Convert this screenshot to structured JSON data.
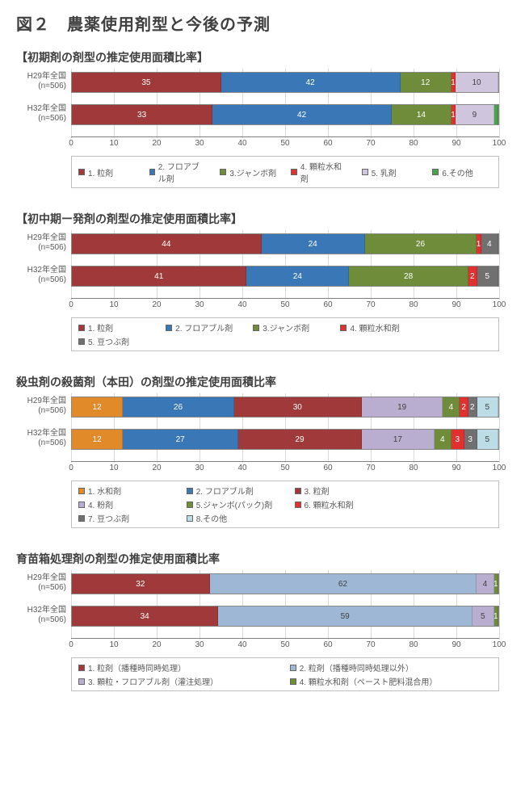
{
  "figure_title": "図２　農薬使用剤型と今後の予測",
  "axis": {
    "min": 0,
    "max": 100,
    "step": 10,
    "ticks": [
      0,
      10,
      20,
      30,
      40,
      50,
      60,
      70,
      80,
      90,
      100
    ]
  },
  "charts": [
    {
      "title": "【初期剤の剤型の推定使用面積比率】",
      "legend_cols": 6,
      "series": [
        {
          "label": "1. 粒剤",
          "color": "#a03a3a"
        },
        {
          "label": "2. フロアブル剤",
          "color": "#3a77b7"
        },
        {
          "label": "3.ジャンボ剤",
          "color": "#6e8c3a"
        },
        {
          "label": "4. 顆粒水和剤",
          "color": "#e03030"
        },
        {
          "label": "5. 乳剤",
          "color": "#cfc6dd"
        },
        {
          "label": "6.その他",
          "color": "#4aa34a"
        }
      ],
      "rows": [
        {
          "label": "H29年全国\n(n=506)",
          "values": [
            35,
            42,
            12,
            1,
            10,
            0
          ],
          "show": [
            true,
            true,
            true,
            true,
            true,
            false
          ]
        },
        {
          "label": "H32年全国\n(n=506)",
          "values": [
            33,
            42,
            14,
            1,
            9,
            1
          ],
          "show": [
            true,
            true,
            true,
            true,
            true,
            false
          ]
        }
      ],
      "dark_text_series": [
        4
      ]
    },
    {
      "title": "【初中期ー発剤の剤型の推定使用面積比率】",
      "legend_cols": 5,
      "series": [
        {
          "label": "1. 粒剤",
          "color": "#a03a3a"
        },
        {
          "label": "2. フロアブル剤",
          "color": "#3a77b7"
        },
        {
          "label": "3.ジャンボ剤",
          "color": "#6e8c3a"
        },
        {
          "label": "4. 顆粒水和剤",
          "color": "#e03030"
        },
        {
          "label": "5. 豆つぶ剤",
          "color": "#707070"
        }
      ],
      "rows": [
        {
          "label": "H29年全国\n(n=506)",
          "values": [
            44,
            24,
            26,
            1,
            4
          ],
          "show": [
            true,
            true,
            true,
            true,
            true
          ]
        },
        {
          "label": "H32年全国\n(n=506)",
          "values": [
            41,
            24,
            28,
            2,
            5
          ],
          "show": [
            true,
            true,
            true,
            true,
            true
          ]
        }
      ],
      "dark_text_series": []
    },
    {
      "title": "殺虫剤の殺菌剤（本田）の剤型の推定使用面積比率",
      "legend_cols": 4,
      "series": [
        {
          "label": "1. 水和剤",
          "color": "#e08a2a"
        },
        {
          "label": "2. フロアブル剤",
          "color": "#3a77b7"
        },
        {
          "label": "3. 粒剤",
          "color": "#a03a3a"
        },
        {
          "label": "4. 粉剤",
          "color": "#b9aed0"
        },
        {
          "label": "5.ジャンボ(パック)剤",
          "color": "#6e8c3a"
        },
        {
          "label": "6. 顆粒水和剤",
          "color": "#e03030"
        },
        {
          "label": "7. 豆つぶ剤",
          "color": "#707070"
        },
        {
          "label": "8.その他",
          "color": "#bcdce6"
        }
      ],
      "rows": [
        {
          "label": "H29年全国\n(n=506)",
          "values": [
            12,
            26,
            30,
            19,
            4,
            2,
            2,
            5
          ],
          "show": [
            true,
            true,
            true,
            true,
            true,
            true,
            true,
            true
          ]
        },
        {
          "label": "H32年全国\n(n=506)",
          "values": [
            12,
            27,
            29,
            17,
            4,
            3,
            3,
            5
          ],
          "show": [
            true,
            true,
            true,
            true,
            true,
            true,
            true,
            true
          ]
        }
      ],
      "dark_text_series": [
        3,
        7
      ]
    },
    {
      "title": "育苗箱処理剤の剤型の推定使用面積比率",
      "legend_cols": 2,
      "series": [
        {
          "label": "1. 粒剤（播種時同時処理）",
          "color": "#a03a3a"
        },
        {
          "label": "2. 粒剤（播種時同時処理以外）",
          "color": "#9db7d4"
        },
        {
          "label": "3. 顆粒・フロアブル剤（灌注処理）",
          "color": "#b9aed0"
        },
        {
          "label": "4. 顆粒水和剤（ペースト肥料混合用）",
          "color": "#6e8c3a"
        }
      ],
      "rows": [
        {
          "label": "H29年全国\n(n=506)",
          "values": [
            32,
            62,
            4,
            1
          ],
          "show": [
            true,
            true,
            true,
            true
          ]
        },
        {
          "label": "H32年全国\n(n=506)",
          "values": [
            34,
            59,
            5,
            1
          ],
          "show": [
            true,
            true,
            true,
            true
          ]
        }
      ],
      "dark_text_series": [
        1,
        2
      ]
    }
  ]
}
